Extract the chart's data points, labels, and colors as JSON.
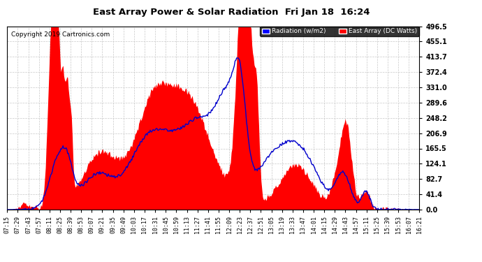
{
  "title": "East Array Power & Solar Radiation  Fri Jan 18  16:24",
  "copyright": "Copyright 2019 Cartronics.com",
  "legend_radiation": "Radiation (w/m2)",
  "legend_east_array": "East Array (DC Watts)",
  "yticks": [
    0.0,
    41.4,
    82.7,
    124.1,
    165.5,
    206.9,
    248.2,
    289.6,
    331.0,
    372.4,
    413.7,
    455.1,
    496.5
  ],
  "ymax": 496.5,
  "ymin": 0.0,
  "bg_color": "#ffffff",
  "plot_bg_color": "#ffffff",
  "grid_color": "#c8c8c8",
  "red_fill_color": "#ff0000",
  "blue_line_color": "#0000cc",
  "title_color": "#000000",
  "xtick_labels": [
    "07:15",
    "07:29",
    "07:43",
    "07:57",
    "08:11",
    "08:25",
    "08:39",
    "08:53",
    "09:07",
    "09:21",
    "09:35",
    "09:49",
    "10:03",
    "10:17",
    "10:31",
    "10:45",
    "10:59",
    "11:13",
    "11:27",
    "11:41",
    "11:55",
    "12:09",
    "12:23",
    "12:37",
    "12:51",
    "13:05",
    "13:19",
    "13:33",
    "13:47",
    "14:01",
    "14:15",
    "14:29",
    "14:43",
    "14:57",
    "15:11",
    "15:25",
    "15:39",
    "15:53",
    "16:07",
    "16:21"
  ],
  "figsize": [
    6.9,
    3.75
  ],
  "dpi": 100
}
